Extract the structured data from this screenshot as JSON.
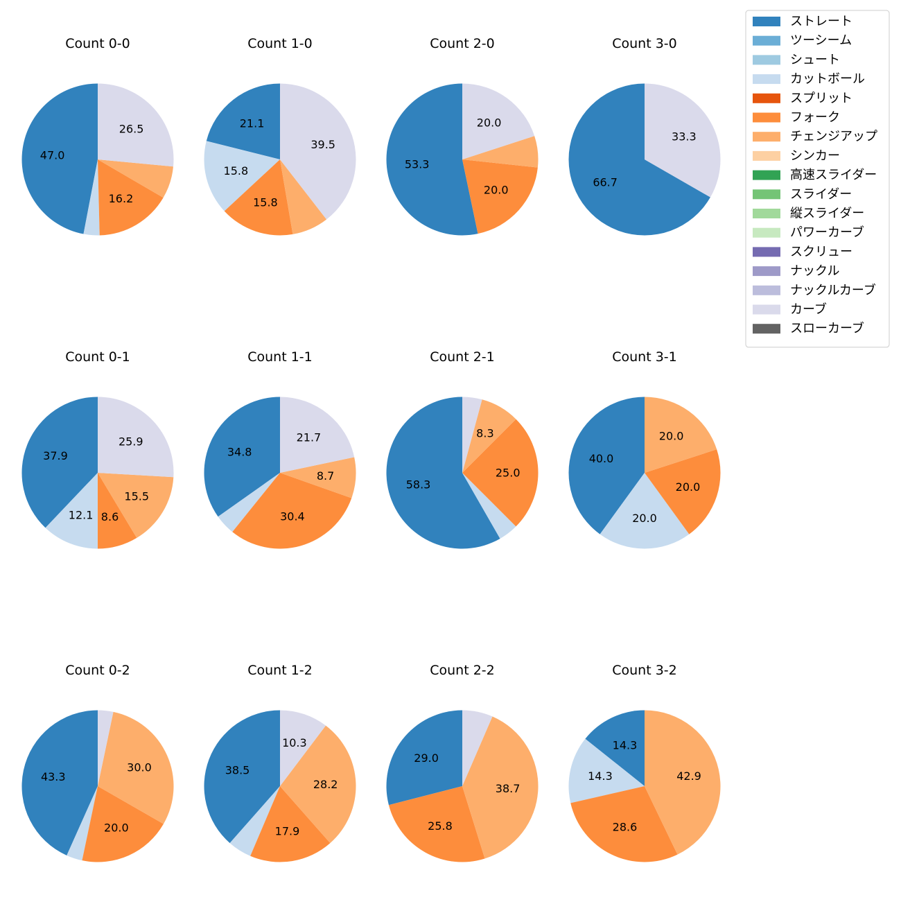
{
  "legend": {
    "placement": "top-right",
    "items": [
      {
        "name": "ストレート",
        "color": "#3182bd"
      },
      {
        "name": "ツーシーム",
        "color": "#6baed6"
      },
      {
        "name": "シュート",
        "color": "#9ecae1"
      },
      {
        "name": "カットボール",
        "color": "#c6dbef"
      },
      {
        "name": "スプリット",
        "color": "#e6550d"
      },
      {
        "name": "フォーク",
        "color": "#fd8d3c"
      },
      {
        "name": "チェンジアップ",
        "color": "#fdae6b"
      },
      {
        "name": "シンカー",
        "color": "#fdd0a2"
      },
      {
        "name": "高速スライダー",
        "color": "#31a354"
      },
      {
        "name": "スライダー",
        "color": "#74c476"
      },
      {
        "name": "縦スライダー",
        "color": "#a1d99b"
      },
      {
        "name": "パワーカーブ",
        "color": "#c7e9c0"
      },
      {
        "name": "スクリュー",
        "color": "#756bb1"
      },
      {
        "name": "ナックル",
        "color": "#9e9ac8"
      },
      {
        "name": "ナックルカーブ",
        "color": "#bcbddc"
      },
      {
        "name": "カーブ",
        "color": "#dadaeb"
      },
      {
        "name": "スローカーブ",
        "color": "#636363"
      }
    ]
  },
  "chart_data": [
    {
      "type": "pie",
      "title": "Count 0-0",
      "slices": [
        {
          "name": "ストレート",
          "value": 47.0,
          "label": "47.0"
        },
        {
          "name": "カットボール",
          "value": 3.4,
          "label": ""
        },
        {
          "name": "フォーク",
          "value": 16.2,
          "label": "16.2"
        },
        {
          "name": "チェンジアップ",
          "value": 6.9,
          "label": ""
        },
        {
          "name": "カーブ",
          "value": 26.5,
          "label": "26.5"
        }
      ]
    },
    {
      "type": "pie",
      "title": "Count 1-0",
      "slices": [
        {
          "name": "ストレート",
          "value": 21.1,
          "label": "21.1"
        },
        {
          "name": "カットボール",
          "value": 15.8,
          "label": "15.8"
        },
        {
          "name": "フォーク",
          "value": 15.8,
          "label": "15.8"
        },
        {
          "name": "チェンジアップ",
          "value": 7.8,
          "label": ""
        },
        {
          "name": "カーブ",
          "value": 39.5,
          "label": "39.5"
        }
      ]
    },
    {
      "type": "pie",
      "title": "Count 2-0",
      "slices": [
        {
          "name": "ストレート",
          "value": 53.3,
          "label": "53.3"
        },
        {
          "name": "フォーク",
          "value": 20.0,
          "label": "20.0"
        },
        {
          "name": "チェンジアップ",
          "value": 6.7,
          "label": ""
        },
        {
          "name": "カーブ",
          "value": 20.0,
          "label": "20.0"
        }
      ]
    },
    {
      "type": "pie",
      "title": "Count 3-0",
      "slices": [
        {
          "name": "ストレート",
          "value": 66.7,
          "label": "66.7"
        },
        {
          "name": "カーブ",
          "value": 33.3,
          "label": "33.3"
        }
      ]
    },
    {
      "type": "pie",
      "title": "Count 0-1",
      "slices": [
        {
          "name": "ストレート",
          "value": 37.9,
          "label": "37.9"
        },
        {
          "name": "カットボール",
          "value": 12.1,
          "label": "12.1"
        },
        {
          "name": "フォーク",
          "value": 8.6,
          "label": "8.6"
        },
        {
          "name": "チェンジアップ",
          "value": 15.5,
          "label": "15.5"
        },
        {
          "name": "カーブ",
          "value": 25.9,
          "label": "25.9"
        }
      ]
    },
    {
      "type": "pie",
      "title": "Count 1-1",
      "slices": [
        {
          "name": "ストレート",
          "value": 34.8,
          "label": "34.8"
        },
        {
          "name": "カットボール",
          "value": 4.4,
          "label": ""
        },
        {
          "name": "フォーク",
          "value": 30.4,
          "label": "30.4"
        },
        {
          "name": "チェンジアップ",
          "value": 8.7,
          "label": "8.7"
        },
        {
          "name": "カーブ",
          "value": 21.7,
          "label": "21.7"
        }
      ]
    },
    {
      "type": "pie",
      "title": "Count 2-1",
      "slices": [
        {
          "name": "ストレート",
          "value": 58.3,
          "label": "58.3"
        },
        {
          "name": "カットボール",
          "value": 4.2,
          "label": ""
        },
        {
          "name": "フォーク",
          "value": 25.0,
          "label": "25.0"
        },
        {
          "name": "チェンジアップ",
          "value": 8.3,
          "label": "8.3"
        },
        {
          "name": "カーブ",
          "value": 4.2,
          "label": ""
        }
      ]
    },
    {
      "type": "pie",
      "title": "Count 3-1",
      "slices": [
        {
          "name": "ストレート",
          "value": 40.0,
          "label": "40.0"
        },
        {
          "name": "カットボール",
          "value": 20.0,
          "label": "20.0"
        },
        {
          "name": "フォーク",
          "value": 20.0,
          "label": "20.0"
        },
        {
          "name": "チェンジアップ",
          "value": 20.0,
          "label": "20.0"
        }
      ]
    },
    {
      "type": "pie",
      "title": "Count 0-2",
      "slices": [
        {
          "name": "ストレート",
          "value": 43.3,
          "label": "43.3"
        },
        {
          "name": "カットボール",
          "value": 3.4,
          "label": ""
        },
        {
          "name": "フォーク",
          "value": 20.0,
          "label": "20.0"
        },
        {
          "name": "チェンジアップ",
          "value": 30.0,
          "label": "30.0"
        },
        {
          "name": "カーブ",
          "value": 3.3,
          "label": ""
        }
      ]
    },
    {
      "type": "pie",
      "title": "Count 1-2",
      "slices": [
        {
          "name": "ストレート",
          "value": 38.5,
          "label": "38.5"
        },
        {
          "name": "カットボール",
          "value": 5.1,
          "label": ""
        },
        {
          "name": "フォーク",
          "value": 17.9,
          "label": "17.9"
        },
        {
          "name": "チェンジアップ",
          "value": 28.2,
          "label": "28.2"
        },
        {
          "name": "カーブ",
          "value": 10.3,
          "label": "10.3"
        }
      ]
    },
    {
      "type": "pie",
      "title": "Count 2-2",
      "slices": [
        {
          "name": "ストレート",
          "value": 29.0,
          "label": "29.0"
        },
        {
          "name": "フォーク",
          "value": 25.8,
          "label": "25.8"
        },
        {
          "name": "チェンジアップ",
          "value": 38.7,
          "label": "38.7"
        },
        {
          "name": "カーブ",
          "value": 6.5,
          "label": ""
        }
      ]
    },
    {
      "type": "pie",
      "title": "Count 3-2",
      "slices": [
        {
          "name": "ストレート",
          "value": 14.3,
          "label": "14.3"
        },
        {
          "name": "カットボール",
          "value": 14.3,
          "label": "14.3"
        },
        {
          "name": "フォーク",
          "value": 28.6,
          "label": "28.6"
        },
        {
          "name": "チェンジアップ",
          "value": 42.9,
          "label": "42.9"
        }
      ]
    }
  ]
}
